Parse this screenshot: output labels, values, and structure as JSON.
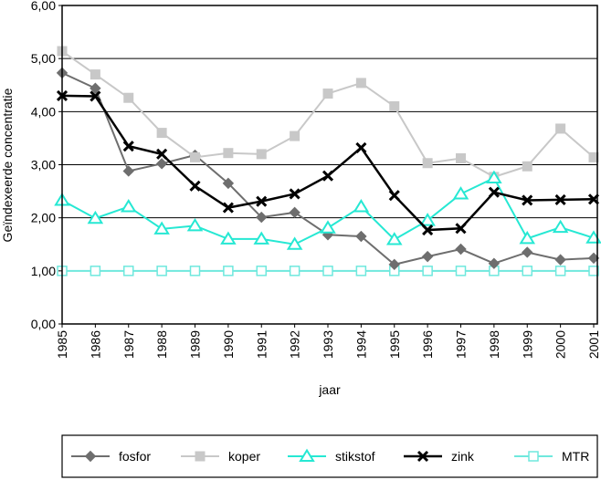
{
  "chart_data": {
    "type": "line",
    "title": "",
    "xlabel": "jaar",
    "ylabel": "Geïndexeerde concentratie",
    "ylim": [
      0,
      6
    ],
    "y_ticks": [
      "0,00",
      "1,00",
      "2,00",
      "3,00",
      "4,00",
      "5,00",
      "6,00"
    ],
    "grid": "horizontal",
    "legend_position": "bottom",
    "categories": [
      "1985",
      "1986",
      "1987",
      "1988",
      "1989",
      "1990",
      "1991",
      "1992",
      "1993",
      "1994",
      "1995",
      "1996",
      "1997",
      "1998",
      "1999",
      "2000",
      "2001"
    ],
    "series": [
      {
        "name": "fosfor",
        "color": "#6e6e6e",
        "marker": "diamond",
        "values": [
          4.73,
          4.44,
          2.88,
          3.02,
          3.18,
          2.65,
          2.01,
          2.1,
          1.68,
          1.65,
          1.12,
          1.27,
          1.41,
          1.14,
          1.35,
          1.21,
          1.24
        ]
      },
      {
        "name": "koper",
        "color": "#c8c8c8",
        "marker": "square",
        "values": [
          5.14,
          4.7,
          4.26,
          3.6,
          3.14,
          3.22,
          3.2,
          3.54,
          4.34,
          4.54,
          4.1,
          3.03,
          3.12,
          2.77,
          2.97,
          3.68,
          3.14
        ]
      },
      {
        "name": "stikstof",
        "color": "#26e8d3",
        "marker": "triangle",
        "values": [
          2.33,
          1.99,
          2.21,
          1.79,
          1.85,
          1.6,
          1.6,
          1.5,
          1.81,
          2.21,
          1.59,
          1.95,
          2.45,
          2.75,
          1.61,
          1.82,
          1.62
        ]
      },
      {
        "name": "zink",
        "color": "#000000",
        "marker": "cross",
        "values": [
          4.3,
          4.29,
          3.35,
          3.2,
          2.6,
          2.19,
          2.31,
          2.45,
          2.79,
          3.32,
          2.42,
          1.77,
          1.8,
          2.48,
          2.33,
          2.34,
          2.35
        ]
      },
      {
        "name": "MTR",
        "color": "#6fe8dd",
        "marker": "open-square",
        "values": [
          1.0,
          1.0,
          1.0,
          1.0,
          1.0,
          1.0,
          1.0,
          1.0,
          1.0,
          1.0,
          1.0,
          1.0,
          1.0,
          1.0,
          1.0,
          1.0,
          1.0
        ]
      }
    ]
  }
}
